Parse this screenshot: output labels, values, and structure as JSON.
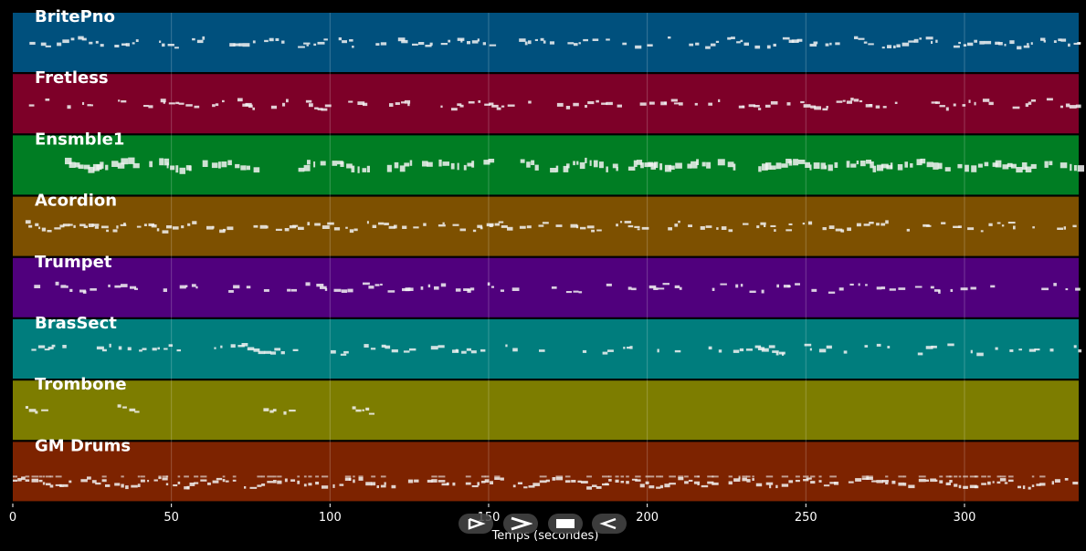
{
  "chart_data": {
    "type": "piano-roll",
    "xlabel": "Temps (secondes)",
    "xlim": [
      0,
      336
    ],
    "xticks": [
      0,
      50,
      100,
      150,
      200,
      250,
      300
    ],
    "grid": true,
    "tracks": [
      {
        "name": "BritePno",
        "color": "#00507d",
        "density": 0.75,
        "active": [
          [
            4,
            336
          ]
        ]
      },
      {
        "name": "Fretless",
        "color": "#7d0028",
        "density": 0.6,
        "active": [
          [
            4,
            336
          ]
        ]
      },
      {
        "name": "Ensmble1",
        "color": "#007d23",
        "density": 0.9,
        "active": [
          [
            15,
            39
          ],
          [
            43,
            78
          ],
          [
            90,
            113
          ],
          [
            118,
            152
          ],
          [
            160,
            228
          ],
          [
            235,
            336
          ]
        ]
      },
      {
        "name": "Acordion",
        "color": "#7d5000",
        "density": 0.65,
        "active": [
          [
            4,
            336
          ]
        ]
      },
      {
        "name": "Trumpet",
        "color": "#50007d",
        "density": 0.45,
        "active": [
          [
            4,
            336
          ]
        ]
      },
      {
        "name": "BrasSect",
        "color": "#007d7d",
        "density": 0.45,
        "active": [
          [
            4,
            336
          ]
        ]
      },
      {
        "name": "Trombone",
        "color": "#7d7d00",
        "density": 0.8,
        "active": [
          [
            4,
            13
          ],
          [
            33,
            39
          ],
          [
            79,
            88
          ],
          [
            107,
            113
          ]
        ]
      },
      {
        "name": "GM Drums",
        "color": "#7d2300",
        "density": 0.9,
        "active": [
          [
            0,
            336
          ]
        ]
      }
    ]
  },
  "controls": {
    "play_icon": "play-icon",
    "forward_icon": "fast-forward-icon",
    "stop_icon": "stop-icon",
    "rewind_icon": "rewind-icon"
  }
}
